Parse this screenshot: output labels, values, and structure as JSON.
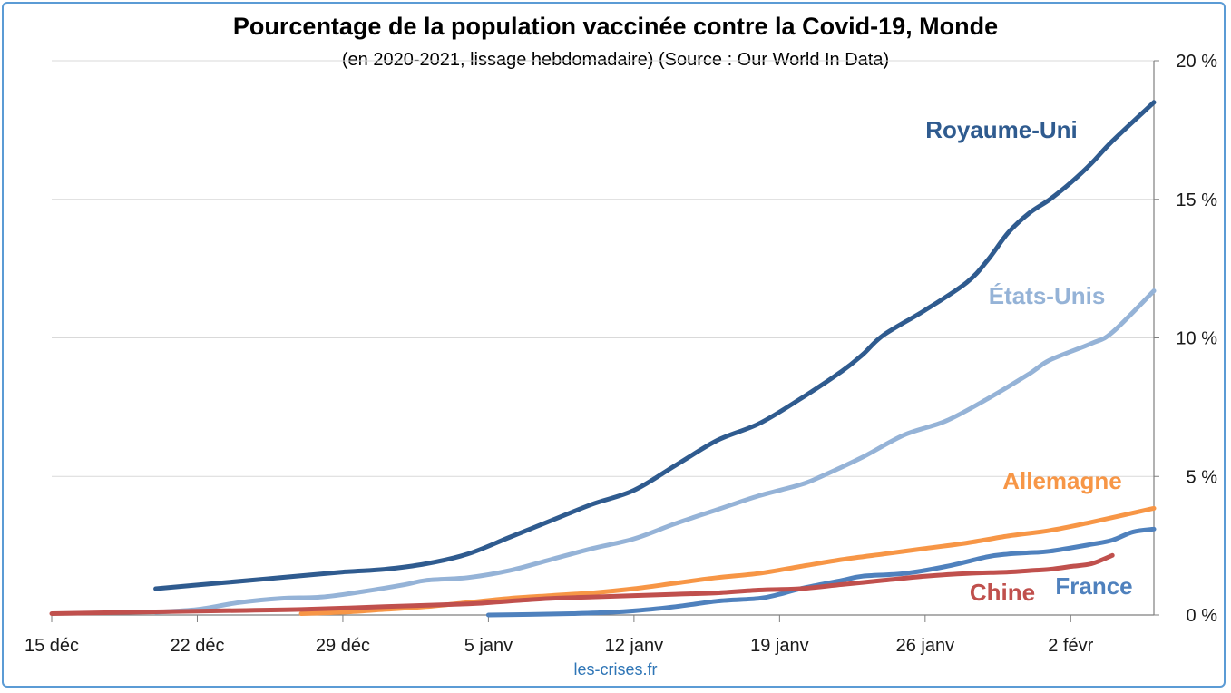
{
  "chart_data": {
    "type": "line",
    "title": "Pourcentage de la population vaccinée contre la Covid-19, Monde",
    "subtitle": "(en 2020-2021, lissage hebdomadaire) (Source : Our World In Data)",
    "credit": "les-crises.fr",
    "x_ticks": [
      {
        "day": 0,
        "label": "15 déc"
      },
      {
        "day": 7,
        "label": "22 déc"
      },
      {
        "day": 14,
        "label": "29 déc"
      },
      {
        "day": 21,
        "label": "5 janv"
      },
      {
        "day": 28,
        "label": "12 janv"
      },
      {
        "day": 35,
        "label": "19 janv"
      },
      {
        "day": 42,
        "label": "26 janv"
      },
      {
        "day": 49,
        "label": "2 févr"
      }
    ],
    "xlim": [
      0,
      53
    ],
    "ylim": [
      0,
      20
    ],
    "y_ticks": [
      {
        "value": 0,
        "label": "0 %"
      },
      {
        "value": 5,
        "label": "5 %"
      },
      {
        "value": 10,
        "label": "10 %"
      },
      {
        "value": 15,
        "label": "15 %"
      },
      {
        "value": 20,
        "label": "20 %"
      }
    ],
    "y_axis_side": "right",
    "grid": true,
    "legend": "none (series labelled directly on the chart)",
    "series": [
      {
        "name": "Royaume-Uni",
        "color": "#2f5b8f",
        "points": [
          [
            5,
            0.95
          ],
          [
            8,
            1.15
          ],
          [
            11,
            1.35
          ],
          [
            14,
            1.55
          ],
          [
            16,
            1.65
          ],
          [
            18,
            1.85
          ],
          [
            20,
            2.2
          ],
          [
            22,
            2.8
          ],
          [
            24,
            3.4
          ],
          [
            26,
            4.0
          ],
          [
            28,
            4.5
          ],
          [
            30,
            5.4
          ],
          [
            32,
            6.3
          ],
          [
            34,
            6.9
          ],
          [
            36,
            7.8
          ],
          [
            38,
            8.8
          ],
          [
            39,
            9.4
          ],
          [
            40,
            10.1
          ],
          [
            42,
            11.0
          ],
          [
            44,
            12.0
          ],
          [
            45,
            12.8
          ],
          [
            46,
            13.8
          ],
          [
            47,
            14.5
          ],
          [
            48,
            15.0
          ],
          [
            49,
            15.6
          ],
          [
            50,
            16.3
          ],
          [
            51,
            17.1
          ],
          [
            53,
            18.5
          ]
        ]
      },
      {
        "name": "États-Unis",
        "color": "#95b3d7",
        "points": [
          [
            5,
            0.1
          ],
          [
            7,
            0.2
          ],
          [
            9,
            0.45
          ],
          [
            11,
            0.6
          ],
          [
            13,
            0.65
          ],
          [
            15,
            0.85
          ],
          [
            17,
            1.1
          ],
          [
            18,
            1.25
          ],
          [
            20,
            1.35
          ],
          [
            22,
            1.6
          ],
          [
            24,
            2.0
          ],
          [
            26,
            2.4
          ],
          [
            28,
            2.75
          ],
          [
            30,
            3.3
          ],
          [
            32,
            3.8
          ],
          [
            34,
            4.3
          ],
          [
            36,
            4.7
          ],
          [
            37,
            5.0
          ],
          [
            39,
            5.7
          ],
          [
            41,
            6.5
          ],
          [
            43,
            7.0
          ],
          [
            45,
            7.8
          ],
          [
            47,
            8.7
          ],
          [
            48,
            9.2
          ],
          [
            50,
            9.8
          ],
          [
            51,
            10.2
          ],
          [
            53,
            11.7
          ]
        ]
      },
      {
        "name": "Allemagne",
        "color": "#f79646",
        "points": [
          [
            12,
            0.05
          ],
          [
            14,
            0.1
          ],
          [
            16,
            0.2
          ],
          [
            18,
            0.3
          ],
          [
            20,
            0.45
          ],
          [
            22,
            0.6
          ],
          [
            24,
            0.7
          ],
          [
            26,
            0.8
          ],
          [
            28,
            0.95
          ],
          [
            30,
            1.15
          ],
          [
            32,
            1.35
          ],
          [
            34,
            1.5
          ],
          [
            36,
            1.75
          ],
          [
            38,
            2.0
          ],
          [
            40,
            2.2
          ],
          [
            42,
            2.4
          ],
          [
            44,
            2.6
          ],
          [
            46,
            2.85
          ],
          [
            48,
            3.05
          ],
          [
            50,
            3.35
          ],
          [
            53,
            3.85
          ]
        ]
      },
      {
        "name": "France",
        "color": "#4f81bd",
        "points": [
          [
            21,
            0.0
          ],
          [
            23,
            0.02
          ],
          [
            25,
            0.05
          ],
          [
            27,
            0.1
          ],
          [
            28,
            0.15
          ],
          [
            30,
            0.3
          ],
          [
            32,
            0.5
          ],
          [
            34,
            0.6
          ],
          [
            35,
            0.75
          ],
          [
            36,
            0.95
          ],
          [
            38,
            1.25
          ],
          [
            39,
            1.4
          ],
          [
            41,
            1.5
          ],
          [
            43,
            1.75
          ],
          [
            45,
            2.1
          ],
          [
            46,
            2.2
          ],
          [
            47,
            2.25
          ],
          [
            48,
            2.3
          ],
          [
            50,
            2.55
          ],
          [
            51,
            2.7
          ],
          [
            52,
            3.0
          ],
          [
            53,
            3.1
          ]
        ]
      },
      {
        "name": "Chine",
        "color": "#c0504d",
        "points": [
          [
            0,
            0.05
          ],
          [
            4,
            0.1
          ],
          [
            8,
            0.15
          ],
          [
            12,
            0.2
          ],
          [
            16,
            0.3
          ],
          [
            20,
            0.4
          ],
          [
            22,
            0.5
          ],
          [
            24,
            0.6
          ],
          [
            26,
            0.65
          ],
          [
            28,
            0.7
          ],
          [
            30,
            0.75
          ],
          [
            32,
            0.8
          ],
          [
            34,
            0.9
          ],
          [
            36,
            0.95
          ],
          [
            38,
            1.1
          ],
          [
            40,
            1.25
          ],
          [
            42,
            1.4
          ],
          [
            44,
            1.5
          ],
          [
            46,
            1.55
          ],
          [
            47,
            1.6
          ],
          [
            48,
            1.65
          ],
          [
            49,
            1.75
          ],
          [
            50,
            1.85
          ],
          [
            51,
            2.15
          ]
        ]
      }
    ]
  }
}
